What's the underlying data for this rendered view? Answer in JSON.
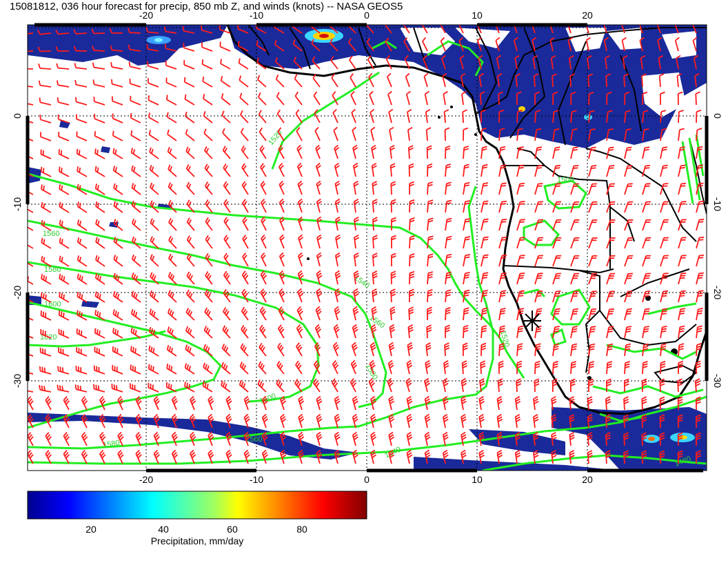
{
  "title": "15081812, 036 hour forecast for precip, 850 mb Z, and winds (knots) -- NASA GEOS5",
  "map": {
    "lon_ticks": [
      "-20",
      "-10",
      "0",
      "10",
      "20"
    ],
    "lat_ticks": [
      "0",
      "-10",
      "-20",
      "-30"
    ],
    "contour_labels": [
      "1520",
      "1500",
      "1560",
      "1580",
      "1600",
      "1620",
      "1540",
      "1560",
      "1520",
      "1600",
      "1580",
      "1580",
      "1560",
      "1540",
      "1480"
    ],
    "contour_color": "#22ee22",
    "wind_barb_color": "#ff1a1a",
    "precip_color": "#1a2a9a"
  },
  "colorbar": {
    "ticks": [
      "20",
      "40",
      "60",
      "80"
    ],
    "label": "Precipitation, mm/day"
  }
}
